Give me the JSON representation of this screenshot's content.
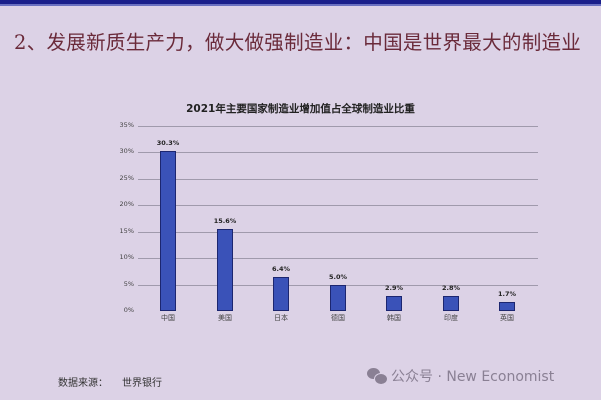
{
  "slide": {
    "title": "2、发展新质生产力，做大做强制造业：中国是世界最大的制造业",
    "source_label": "数据来源：",
    "source_value": "世界银行",
    "watermark": "公众号 · New Economist",
    "colors": {
      "background": "#dcd2e6",
      "bar": "#3a52b8",
      "title": "#6a2a3a",
      "topbar": "#1a1f8a"
    }
  },
  "chart_data": {
    "type": "bar",
    "title": "2021年主要国家制造业增加值占全球制造业比重",
    "categories": [
      "中国",
      "美国",
      "日本",
      "德国",
      "韩国",
      "印度",
      "英国"
    ],
    "values": [
      30.3,
      15.6,
      6.4,
      5.0,
      2.9,
      2.8,
      1.7
    ],
    "value_labels": [
      "30.3%",
      "15.6%",
      "6.4%",
      "5.0%",
      "2.9%",
      "2.8%",
      "1.7%"
    ],
    "xlabel": "",
    "ylabel": "",
    "ylim": [
      0,
      35
    ],
    "yticks": [
      "0%",
      "5%",
      "10%",
      "15%",
      "20%",
      "25%",
      "30%",
      "35%"
    ],
    "grid": true,
    "legend": "none"
  }
}
